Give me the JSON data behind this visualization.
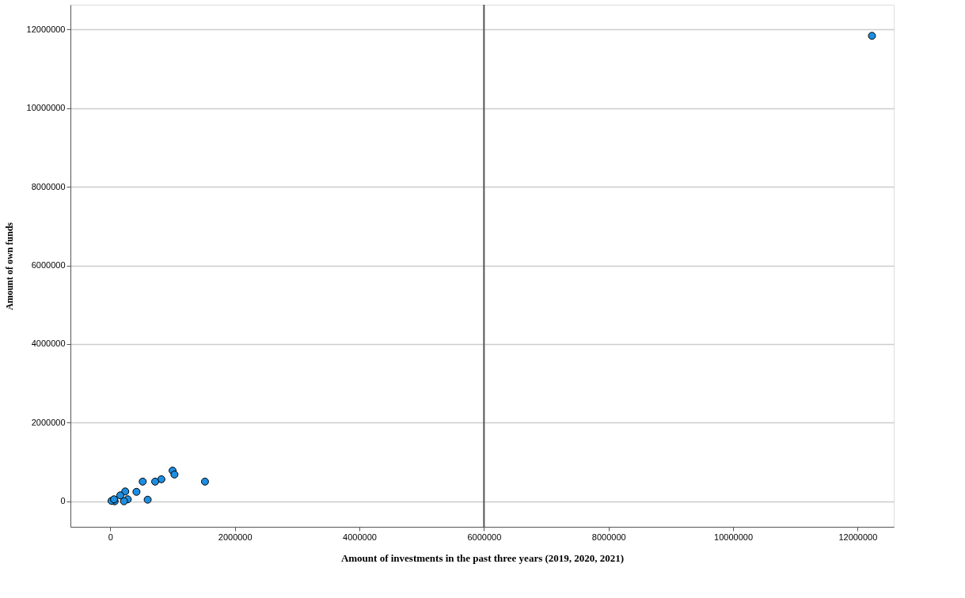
{
  "chart_data": {
    "type": "scatter",
    "xlabel": "Amount of investments in the past three years (2019, 2020, 2021)",
    "ylabel": "Amount of own funds",
    "x": [
      12230000,
      1000000,
      1030000,
      820000,
      720000,
      520000,
      1520000,
      420000,
      600000,
      240000,
      280000,
      220000,
      70000,
      20000,
      160000,
      60000
    ],
    "values": [
      11840000,
      780000,
      680000,
      560000,
      500000,
      500000,
      500000,
      240000,
      40000,
      250000,
      50000,
      0,
      0,
      10000,
      150000,
      50000
    ],
    "color": "#1e8ee0",
    "marker": "circle",
    "xlim": [
      -640000,
      12580000
    ],
    "ylim": [
      -650000,
      12630000
    ],
    "xticks": [
      0,
      2000000,
      4000000,
      6000000,
      8000000,
      10000000,
      12000000
    ],
    "yticks": [
      0,
      2000000,
      4000000,
      6000000,
      8000000,
      10000000,
      12000000
    ],
    "grid": "y",
    "ref_lines": [
      {
        "axis": "x",
        "value": 6000000,
        "color": "#555555"
      }
    ]
  }
}
